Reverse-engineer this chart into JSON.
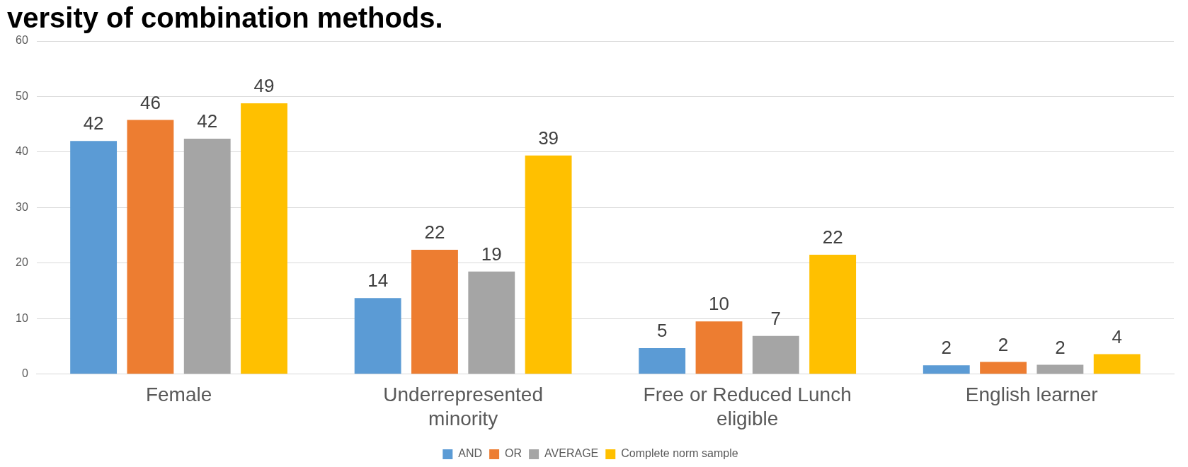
{
  "chart_data": {
    "type": "bar",
    "title": "versity of combination methods.",
    "categories": [
      "Female",
      "Underrepresented minority",
      "Free or Reduced Lunch eligible",
      "English learner"
    ],
    "series": [
      {
        "name": "AND",
        "color": "#5b9bd5",
        "values": [
          42,
          13.7,
          4.7,
          1.6
        ],
        "value_labels": [
          "42",
          "14",
          "5",
          "2"
        ]
      },
      {
        "name": "OR",
        "color": "#ed7d31",
        "values": [
          45.8,
          22.4,
          9.5,
          2.2
        ],
        "value_labels": [
          "46",
          "22",
          "10",
          "2"
        ]
      },
      {
        "name": "AVERAGE",
        "color": "#a5a5a5",
        "values": [
          42.4,
          18.5,
          6.9,
          1.7
        ],
        "value_labels": [
          "42",
          "19",
          "7",
          "2"
        ]
      },
      {
        "name": "Complete norm sample",
        "color": "#ffc000",
        "values": [
          48.8,
          39.4,
          21.5,
          3.6
        ],
        "value_labels": [
          "49",
          "39",
          "22",
          "4"
        ]
      }
    ],
    "ylim": [
      0,
      60
    ],
    "yticks": [
      0,
      10,
      20,
      30,
      40,
      50,
      60
    ],
    "grid": "y",
    "legend": "bottom"
  }
}
